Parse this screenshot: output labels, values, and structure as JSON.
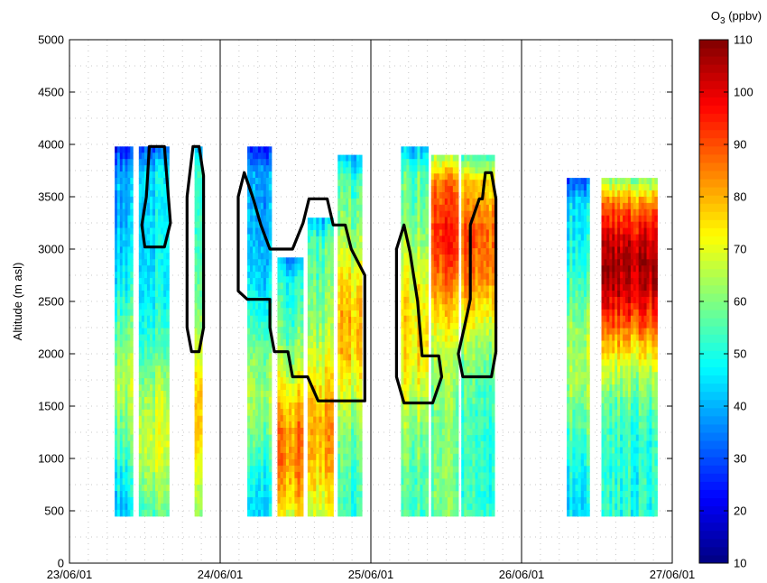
{
  "chart_data": {
    "type": "heatmap",
    "title": "",
    "ylabel": "Altitude (m asl)",
    "xlabel": "",
    "x_tick_labels": [
      "23/06/01",
      "24/06/01",
      "25/06/01",
      "26/06/01",
      "27/06/01"
    ],
    "x_range_days": [
      0,
      4
    ],
    "ylim": [
      0,
      5000
    ],
    "y_ticks": [
      0,
      500,
      1000,
      1500,
      2000,
      2500,
      3000,
      3500,
      4000,
      4500,
      5000
    ],
    "grid": "dotted",
    "day_separators": [
      1,
      2,
      3
    ],
    "colorbar": {
      "label_main": "O",
      "label_sub": "3",
      "label_unit": " (ppbv)",
      "range": [
        10,
        110
      ],
      "ticks": [
        10,
        20,
        30,
        40,
        50,
        60,
        70,
        80,
        90,
        100,
        110
      ],
      "colormap": "jet"
    },
    "profile_blocks": [
      {
        "x0": 0.3,
        "x1": 0.42,
        "ymin": 450,
        "ymax": 3980,
        "base": 40,
        "peak": 65,
        "peak_alt": 2700
      },
      {
        "x0": 0.46,
        "x1": 0.66,
        "ymin": 450,
        "ymax": 3980,
        "base": 45,
        "peak": 68,
        "peak_alt": 3200
      },
      {
        "x0": 0.83,
        "x1": 0.88,
        "ymin": 450,
        "ymax": 3980,
        "base": 50,
        "peak": 75,
        "peak_alt": 3000
      },
      {
        "x0": 1.18,
        "x1": 1.34,
        "ymin": 450,
        "ymax": 3980,
        "base": 38,
        "peak": 62,
        "peak_alt": 2800
      },
      {
        "x0": 1.38,
        "x1": 1.55,
        "ymin": 450,
        "ymax": 2920,
        "base": 50,
        "peak": 85,
        "peak_alt": 2300
      },
      {
        "x0": 1.58,
        "x1": 1.75,
        "ymin": 450,
        "ymax": 3300,
        "base": 55,
        "peak": 80,
        "peak_alt": 2500
      },
      {
        "x0": 1.78,
        "x1": 1.94,
        "ymin": 450,
        "ymax": 3900,
        "base": 52,
        "peak": 78,
        "peak_alt": 2100
      },
      {
        "x0": 2.2,
        "x1": 2.38,
        "ymin": 450,
        "ymax": 3980,
        "base": 55,
        "peak": 75,
        "peak_alt": 2200
      },
      {
        "x0": 2.4,
        "x1": 2.58,
        "ymin": 450,
        "ymax": 3900,
        "base": 58,
        "peak": 92,
        "peak_alt": 1200
      },
      {
        "x0": 2.6,
        "x1": 2.82,
        "ymin": 450,
        "ymax": 3900,
        "base": 52,
        "peak": 88,
        "peak_alt": 1300
      },
      {
        "x0": 3.3,
        "x1": 3.45,
        "ymin": 450,
        "ymax": 3680,
        "base": 45,
        "peak": 65,
        "peak_alt": 2200
      },
      {
        "x0": 3.53,
        "x1": 3.9,
        "ymin": 450,
        "ymax": 3680,
        "base": 50,
        "peak": 105,
        "peak_alt": 1300
      }
    ],
    "air_mass_outlines": [
      {
        "name": "",
        "points": [
          [
            0.48,
            3230
          ],
          [
            0.51,
            3500
          ],
          [
            0.53,
            3980
          ],
          [
            0.63,
            3980
          ],
          [
            0.67,
            3250
          ],
          [
            0.63,
            3020
          ],
          [
            0.5,
            3020
          ]
        ]
      },
      {
        "name": "",
        "points": [
          [
            0.78,
            3500
          ],
          [
            0.82,
            3980
          ],
          [
            0.86,
            3980
          ],
          [
            0.89,
            3700
          ],
          [
            0.89,
            2250
          ],
          [
            0.86,
            2020
          ],
          [
            0.81,
            2020
          ],
          [
            0.78,
            2250
          ]
        ]
      },
      {
        "name": "",
        "points": [
          [
            1.12,
            2600
          ],
          [
            1.12,
            3500
          ],
          [
            1.16,
            3730
          ],
          [
            1.22,
            3480
          ],
          [
            1.27,
            3230
          ],
          [
            1.33,
            3000
          ],
          [
            1.48,
            3000
          ],
          [
            1.55,
            3250
          ],
          [
            1.59,
            3480
          ],
          [
            1.71,
            3480
          ],
          [
            1.75,
            3230
          ],
          [
            1.83,
            3230
          ],
          [
            1.87,
            3000
          ],
          [
            1.96,
            2750
          ],
          [
            1.96,
            1550
          ],
          [
            1.65,
            1550
          ],
          [
            1.58,
            1780
          ],
          [
            1.48,
            1780
          ],
          [
            1.45,
            2020
          ],
          [
            1.36,
            2020
          ],
          [
            1.33,
            2250
          ],
          [
            1.33,
            2520
          ],
          [
            1.18,
            2520
          ]
        ]
      },
      {
        "name": "",
        "points": [
          [
            2.17,
            2500
          ],
          [
            2.17,
            3000
          ],
          [
            2.22,
            3230
          ],
          [
            2.26,
            2970
          ],
          [
            2.31,
            2500
          ],
          [
            2.34,
            1980
          ],
          [
            2.45,
            1980
          ],
          [
            2.47,
            1780
          ],
          [
            2.41,
            1530
          ],
          [
            2.22,
            1530
          ],
          [
            2.17,
            1780
          ]
        ]
      },
      {
        "name": "",
        "points": [
          [
            2.58,
            2000
          ],
          [
            2.62,
            2250
          ],
          [
            2.66,
            2520
          ],
          [
            2.66,
            3230
          ],
          [
            2.72,
            3480
          ],
          [
            2.74,
            3480
          ],
          [
            2.76,
            3730
          ],
          [
            2.8,
            3730
          ],
          [
            2.83,
            3480
          ],
          [
            2.83,
            2020
          ],
          [
            2.8,
            1780
          ],
          [
            2.61,
            1780
          ]
        ]
      }
    ]
  }
}
